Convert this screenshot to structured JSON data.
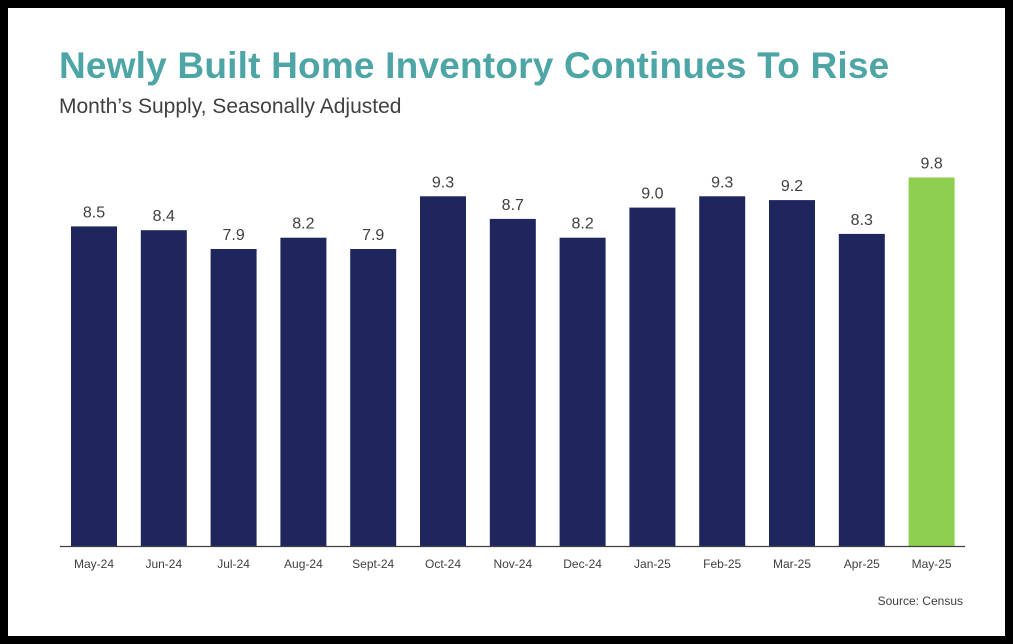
{
  "colors": {
    "title": "#4da5a6",
    "bar": "#1f265e",
    "highlight": "#8ecf50",
    "axis": "#404040",
    "label": "#404040"
  },
  "source": "Source: Census",
  "chart_data": {
    "type": "bar",
    "title": "Newly Built Home Inventory Continues To Rise",
    "subtitle": "Month’s Supply, Seasonally Adjusted",
    "xlabel": "",
    "ylabel": "",
    "categories": [
      "May-24",
      "Jun-24",
      "Jul-24",
      "Aug-24",
      "Sept-24",
      "Oct-24",
      "Nov-24",
      "Dec-24",
      "Jan-25",
      "Feb-25",
      "Mar-25",
      "Apr-25",
      "May-25"
    ],
    "values": [
      8.5,
      8.4,
      7.9,
      8.2,
      7.9,
      9.3,
      8.7,
      8.2,
      9.0,
      9.3,
      9.2,
      8.3,
      9.8
    ],
    "value_labels": [
      "8.5",
      "8.4",
      "7.9",
      "8.2",
      "7.9",
      "9.3",
      "8.7",
      "8.2",
      "9.0",
      "9.3",
      "9.2",
      "8.3",
      "9.8"
    ],
    "highlight_index": 12,
    "ylim": [
      0,
      10
    ],
    "grid": false,
    "legend": "none"
  }
}
